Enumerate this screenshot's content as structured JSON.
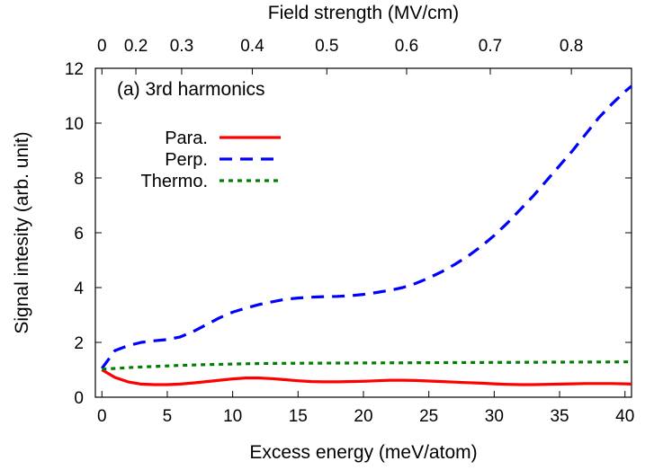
{
  "chart_data": {
    "type": "line",
    "annotation": "(a) 3rd harmonics",
    "xlabel": "Excess energy (meV/atom)",
    "ylabel": "Signal intesity (arb. unit)",
    "x2label": "Field strength (MV/cm)",
    "xlim": [
      -0.5,
      40.5
    ],
    "ylim": [
      0,
      12
    ],
    "xticks": [
      0,
      5,
      10,
      15,
      20,
      25,
      30,
      35,
      40
    ],
    "yticks": [
      0,
      2,
      4,
      6,
      8,
      10,
      12
    ],
    "x2ticks": [
      {
        "label": "0",
        "x": 0.0
      },
      {
        "label": "0.2",
        "x": 2.6
      },
      {
        "label": "0.3",
        "x": 6.1
      },
      {
        "label": "0.4",
        "x": 11.5
      },
      {
        "label": "0.5",
        "x": 17.2
      },
      {
        "label": "0.6",
        "x": 23.3
      },
      {
        "label": "0.7",
        "x": 29.7
      },
      {
        "label": "0.8",
        "x": 35.9
      }
    ],
    "grid": false,
    "legend_position": "upper-left",
    "series": [
      {
        "name": "Para.",
        "color": "#ff0000",
        "style": "solid",
        "x": [
          0,
          1,
          2,
          3,
          4,
          5,
          6,
          7,
          8,
          9,
          10,
          11,
          12,
          13,
          14,
          15,
          16,
          17,
          18,
          19,
          20,
          21,
          22,
          23,
          24,
          25,
          26,
          27,
          28,
          29,
          30,
          31,
          32,
          33,
          34,
          35,
          36,
          37,
          38,
          39,
          40,
          40.5
        ],
        "y": [
          1.0,
          0.72,
          0.56,
          0.48,
          0.46,
          0.46,
          0.48,
          0.52,
          0.57,
          0.62,
          0.67,
          0.7,
          0.7,
          0.68,
          0.64,
          0.6,
          0.57,
          0.56,
          0.56,
          0.57,
          0.58,
          0.6,
          0.62,
          0.62,
          0.61,
          0.59,
          0.57,
          0.55,
          0.53,
          0.51,
          0.49,
          0.47,
          0.46,
          0.46,
          0.47,
          0.48,
          0.49,
          0.5,
          0.5,
          0.5,
          0.49,
          0.48
        ]
      },
      {
        "name": "Perp.",
        "color": "#0000ff",
        "style": "dashed",
        "x": [
          0,
          1,
          2,
          3,
          4,
          5,
          6,
          7,
          8,
          9,
          10,
          11,
          12,
          13,
          14,
          15,
          16,
          17,
          18,
          19,
          20,
          21,
          22,
          23,
          24,
          25,
          26,
          27,
          28,
          29,
          30,
          31,
          32,
          33,
          34,
          35,
          36,
          37,
          38,
          39,
          40,
          40.5
        ],
        "y": [
          1.05,
          1.7,
          1.88,
          2.0,
          2.06,
          2.1,
          2.2,
          2.4,
          2.65,
          2.9,
          3.1,
          3.25,
          3.38,
          3.48,
          3.57,
          3.62,
          3.65,
          3.67,
          3.68,
          3.7,
          3.75,
          3.82,
          3.9,
          4.0,
          4.15,
          4.35,
          4.58,
          4.85,
          5.15,
          5.5,
          5.9,
          6.35,
          6.85,
          7.35,
          7.9,
          8.45,
          9.0,
          9.6,
          10.2,
          10.7,
          11.15,
          11.35
        ]
      },
      {
        "name": "Thermo.",
        "color": "#008000",
        "style": "dotted",
        "x": [
          0,
          1,
          2,
          3,
          4,
          5,
          6,
          8,
          10,
          12,
          15,
          20,
          25,
          30,
          35,
          40,
          40.5
        ],
        "y": [
          1.02,
          1.05,
          1.08,
          1.1,
          1.12,
          1.14,
          1.16,
          1.19,
          1.21,
          1.23,
          1.24,
          1.25,
          1.26,
          1.27,
          1.28,
          1.29,
          1.29
        ]
      }
    ]
  }
}
